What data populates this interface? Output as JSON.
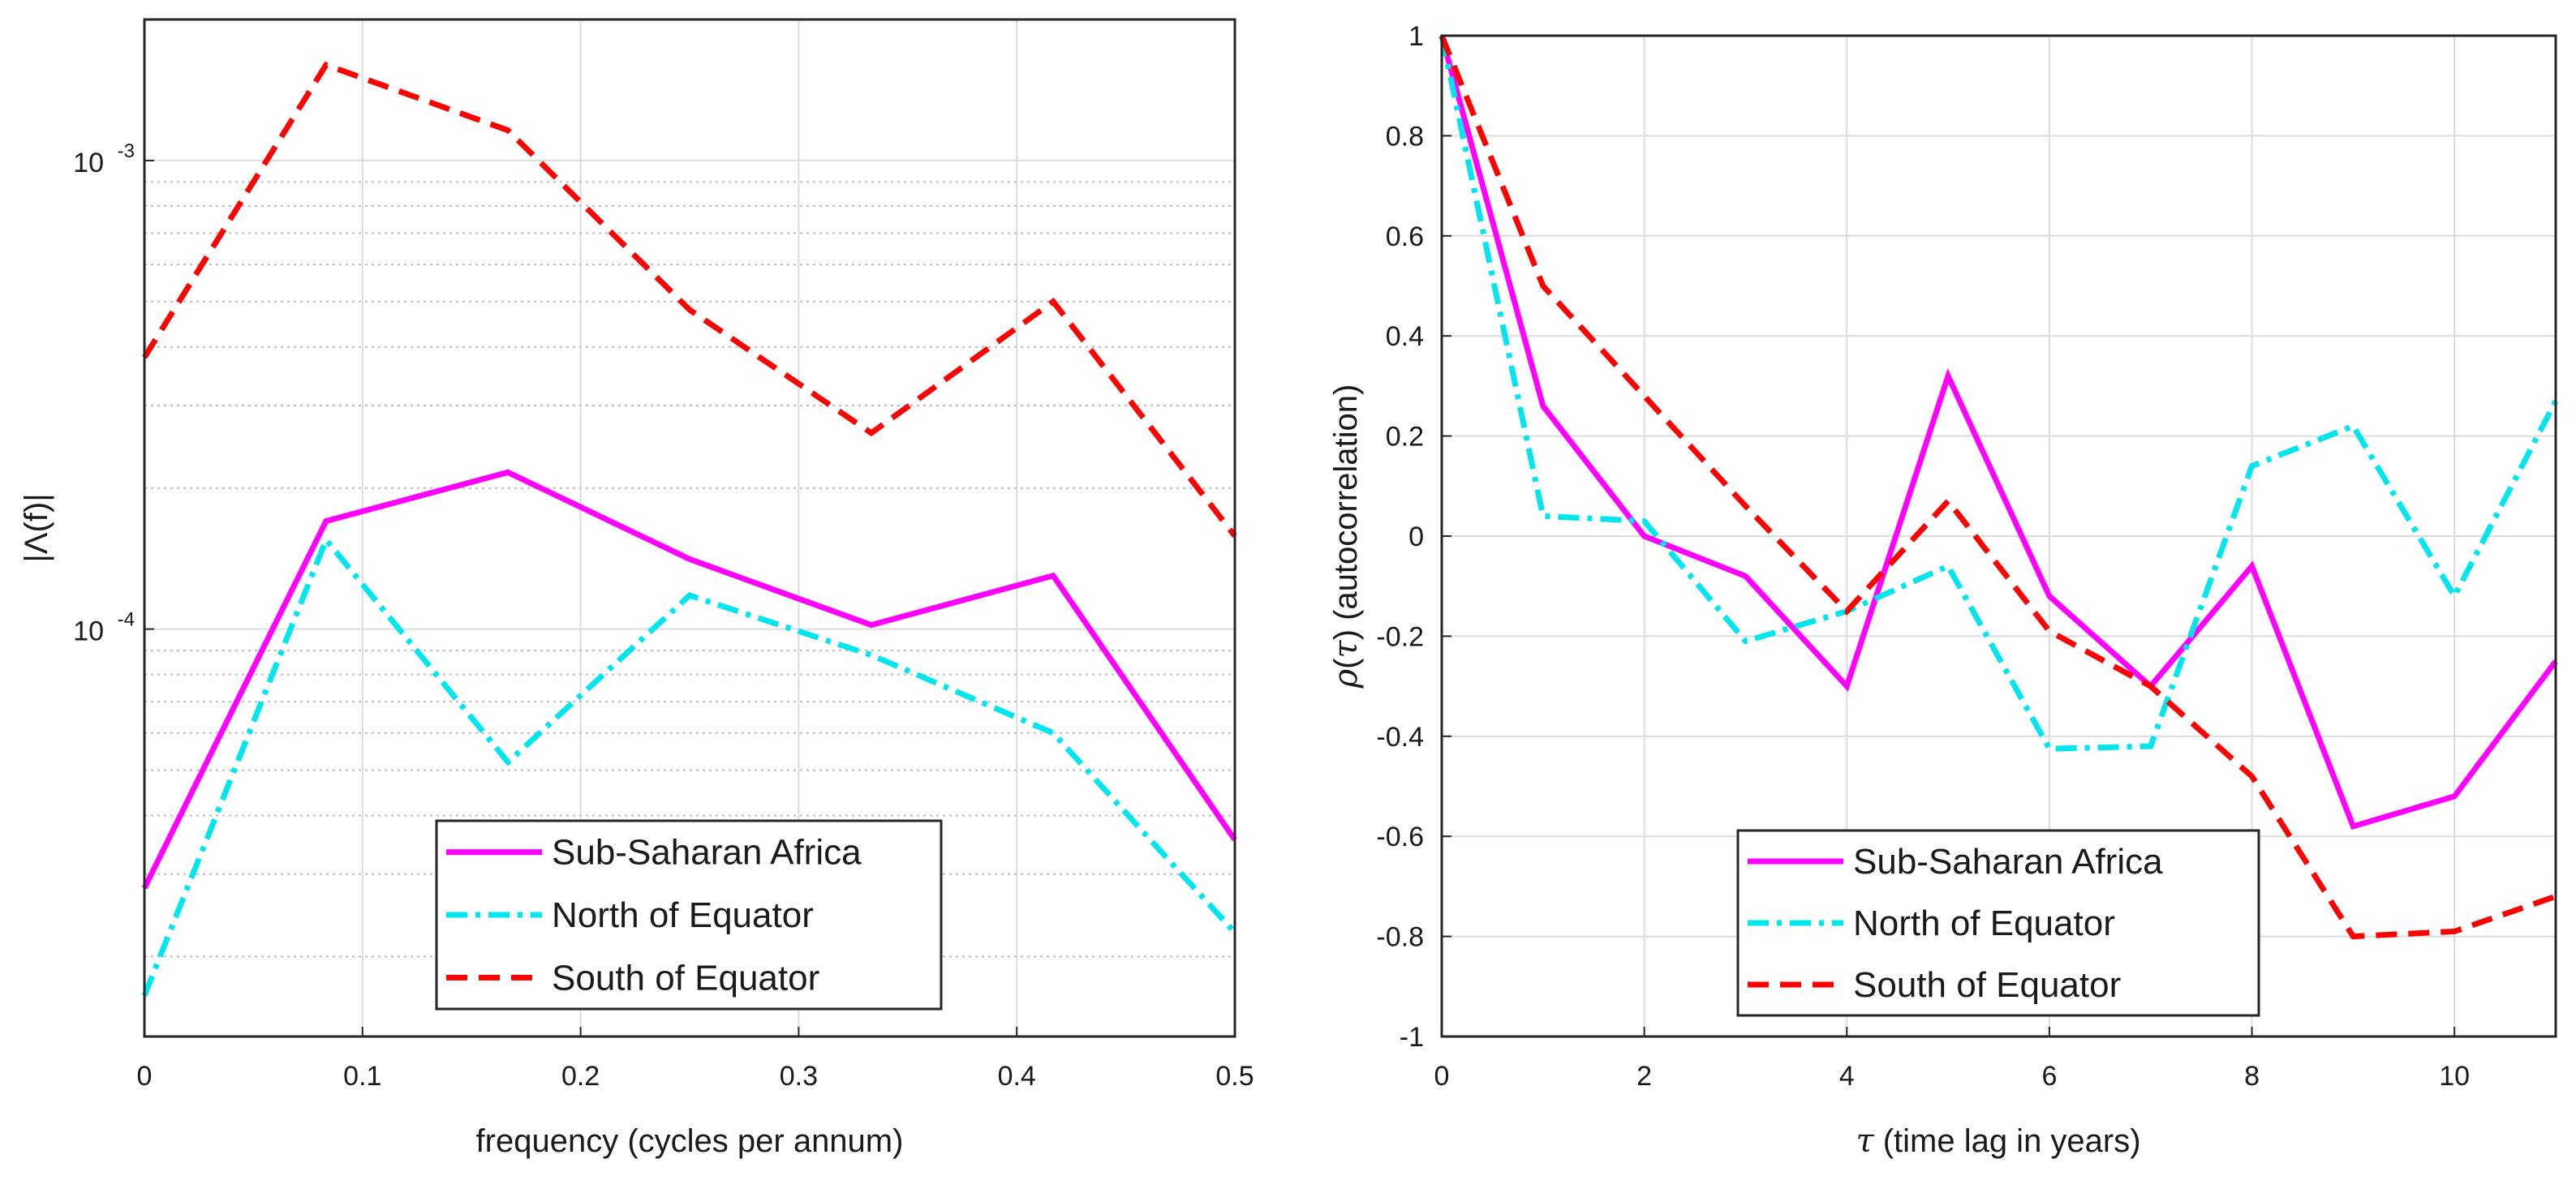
{
  "chart_data": [
    {
      "type": "line",
      "yscale": "log",
      "title": "",
      "xlabel": "frequency (cycles per annum)",
      "ylabel": "|Λ(f)|",
      "xlim": [
        0,
        0.5
      ],
      "ylim": [
        1.35e-05,
        0.002
      ],
      "xticks": [
        0,
        0.1,
        0.2,
        0.3,
        0.4,
        0.5
      ],
      "xtick_labels": [
        "0",
        "0.1",
        "0.2",
        "0.3",
        "0.4",
        "0.5"
      ],
      "ytick_labels": [
        {
          "value": 0.0001,
          "base": "10",
          "exp": "-4"
        },
        {
          "value": 0.001,
          "base": "10",
          "exp": "-3"
        }
      ],
      "grid": true,
      "minor_grid_y": true,
      "legend_position": "bottom-center",
      "x": [
        0,
        0.0833,
        0.1667,
        0.25,
        0.3333,
        0.4167,
        0.5
      ],
      "series": [
        {
          "name": "Sub-Saharan Africa",
          "color": "#ff00ff",
          "style": "solid",
          "values": [
            2.8e-05,
            0.00017,
            0.000216,
            0.000141,
            0.000102,
            0.00013,
            3.55e-05
          ]
        },
        {
          "name": "North of Equator",
          "color": "#00e5ee",
          "style": "dashdot",
          "values": [
            1.65e-05,
            0.000155,
            5.2e-05,
            0.000118,
            8.8e-05,
            6e-05,
            2.25e-05
          ]
        },
        {
          "name": "South of Equator",
          "color": "#ff0000",
          "style": "dashed",
          "values": [
            0.00038,
            0.0016,
            0.00116,
            0.00048,
            0.000262,
            0.0005,
            0.000158
          ]
        }
      ]
    },
    {
      "type": "line",
      "yscale": "linear",
      "title": "",
      "xlabel_symbol": "τ",
      "xlabel_text": " (time lag in years)",
      "ylabel_symbol_rho": "ρ",
      "ylabel_symbol_tau": "τ",
      "ylabel_text": " (autocorrelation)",
      "xlim": [
        0,
        11
      ],
      "ylim": [
        -1,
        1
      ],
      "xticks": [
        0,
        2,
        4,
        6,
        8,
        10
      ],
      "xtick_labels": [
        "0",
        "2",
        "4",
        "6",
        "8",
        "10"
      ],
      "yticks": [
        -1,
        -0.8,
        -0.6,
        -0.4,
        -0.2,
        0,
        0.2,
        0.4,
        0.6,
        0.8,
        1
      ],
      "ytick_labels": [
        "-1",
        "-0.8",
        "-0.6",
        "-0.4",
        "-0.2",
        "0",
        "0.2",
        "0.4",
        "0.6",
        "0.8",
        "1"
      ],
      "grid": true,
      "legend_position": "bottom-center",
      "x": [
        0,
        1,
        2,
        3,
        4,
        5,
        6,
        7,
        8,
        9,
        10,
        11
      ],
      "series": [
        {
          "name": "Sub-Saharan Africa",
          "color": "#ff00ff",
          "style": "solid",
          "values": [
            1,
            0.26,
            0,
            -0.08,
            -0.3,
            0.32,
            -0.12,
            -0.3,
            -0.06,
            -0.58,
            -0.52,
            -0.25
          ]
        },
        {
          "name": "North of Equator",
          "color": "#00e5ee",
          "style": "dashdot",
          "values": [
            1,
            0.04,
            0.03,
            -0.21,
            -0.15,
            -0.06,
            -0.425,
            -0.42,
            0.14,
            0.22,
            -0.12,
            0.27
          ]
        },
        {
          "name": "South of Equator",
          "color": "#ff0000",
          "style": "dashed",
          "values": [
            1,
            0.5,
            0.28,
            0.06,
            -0.15,
            0.07,
            -0.19,
            -0.3,
            -0.48,
            -0.8,
            -0.79,
            -0.72
          ]
        }
      ]
    }
  ]
}
